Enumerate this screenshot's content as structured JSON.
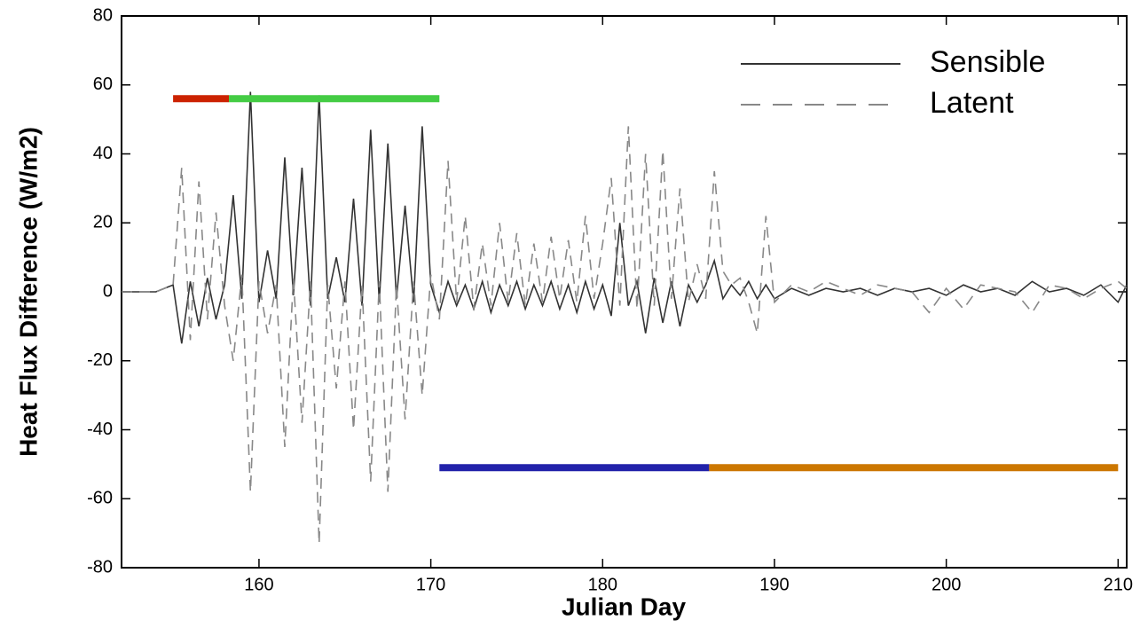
{
  "chart_data": {
    "type": "line",
    "xlabel": "Julian Day",
    "ylabel": "Heat Flux Difference (W/m2)",
    "xlim": [
      152,
      210.5
    ],
    "ylim": [
      -80,
      80
    ],
    "xticks": [
      160,
      170,
      180,
      190,
      200,
      210
    ],
    "yticks": [
      -80,
      -60,
      -40,
      -20,
      0,
      20,
      40,
      60,
      80
    ],
    "legend": "top-right",
    "x": [
      152,
      154,
      155,
      155.5,
      156,
      156.5,
      157,
      157.5,
      158,
      158.5,
      159,
      159.5,
      160,
      160.5,
      161,
      161.5,
      162,
      162.5,
      163,
      163.5,
      164,
      164.5,
      165,
      165.5,
      166,
      166.5,
      167,
      167.5,
      168,
      168.5,
      169,
      169.5,
      170,
      170.5,
      171,
      171.5,
      172,
      172.5,
      173,
      173.5,
      174,
      174.5,
      175,
      175.5,
      176,
      176.5,
      177,
      177.5,
      178,
      178.5,
      179,
      179.5,
      180,
      180.5,
      181,
      181.5,
      182,
      182.5,
      183,
      183.5,
      184,
      184.5,
      185,
      185.5,
      186,
      186.5,
      187,
      187.5,
      188,
      188.5,
      189,
      189.5,
      190,
      191,
      192,
      193,
      194,
      195,
      196,
      197,
      198,
      199,
      200,
      201,
      202,
      203,
      204,
      205,
      206,
      207,
      208,
      209,
      210,
      210.5
    ],
    "series": [
      {
        "name": "Sensible",
        "color": "#333333",
        "dash": false,
        "values": [
          0,
          0,
          2,
          -15,
          3,
          -10,
          4,
          -8,
          2,
          28,
          -2,
          58,
          -3,
          12,
          -2,
          39,
          -1,
          36,
          -4,
          57,
          -2,
          10,
          -3,
          27,
          -4,
          47,
          -3,
          43,
          -2,
          25,
          -3,
          48,
          2,
          -6,
          3,
          -4,
          2,
          -5,
          3,
          -6,
          2,
          -4,
          3,
          -5,
          2,
          -4,
          3,
          -5,
          2,
          -6,
          3,
          -5,
          2,
          -7,
          20,
          -4,
          3,
          -12,
          4,
          -9,
          3,
          -10,
          2,
          -3,
          2,
          9,
          -2,
          2,
          -1,
          3,
          -2,
          2,
          -2,
          1,
          -1,
          1,
          0,
          1,
          -1,
          1,
          0,
          1,
          -1,
          2,
          0,
          1,
          -1,
          3,
          0,
          1,
          -1,
          2,
          -3,
          2
        ]
      },
      {
        "name": "Latent",
        "color": "#888888",
        "dash": true,
        "values": [
          0,
          0,
          2,
          36,
          -14,
          32,
          -8,
          23,
          -4,
          -20,
          5,
          -58,
          3,
          -12,
          2,
          -45,
          4,
          -38,
          3,
          -73,
          2,
          -28,
          3,
          -40,
          2,
          -55,
          3,
          -58,
          2,
          -37,
          3,
          -30,
          5,
          -8,
          38,
          -3,
          22,
          -5,
          14,
          -4,
          20,
          -3,
          17,
          -4,
          14,
          -3,
          16,
          -2,
          15,
          -3,
          22,
          -2,
          14,
          33,
          -4,
          48,
          -5,
          40,
          -4,
          41,
          -2,
          30,
          -3,
          8,
          -2,
          35,
          6,
          2,
          4,
          -3,
          -12,
          22,
          -3,
          2,
          0,
          3,
          1,
          -1,
          2,
          1,
          0,
          -6,
          1,
          -5,
          2,
          1,
          0,
          -6,
          2,
          1,
          -2,
          1,
          3,
          1
        ]
      }
    ],
    "periods": [
      {
        "start": 155,
        "end": 158.25,
        "y": 56,
        "color": "#cc2200"
      },
      {
        "start": 158.25,
        "end": 170.5,
        "y": 56,
        "color": "#44cc44"
      },
      {
        "start": 170.5,
        "end": 186.2,
        "y": -51,
        "color": "#2222aa"
      },
      {
        "start": 186.2,
        "end": 210,
        "y": -51,
        "color": "#cc7700"
      }
    ]
  }
}
